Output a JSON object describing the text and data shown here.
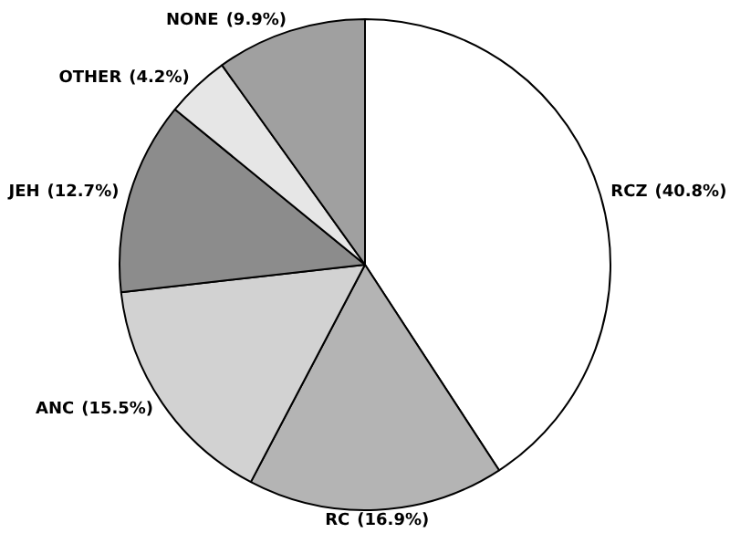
{
  "chart_data": {
    "type": "pie",
    "categories": [
      "RCZ",
      "RC",
      "ANC",
      "JEH",
      "OTHER",
      "NONE"
    ],
    "values": [
      40.8,
      16.9,
      15.5,
      12.7,
      4.2,
      9.9
    ],
    "colors": [
      "#ffffff",
      "#b4b4b4",
      "#d2d2d2",
      "#8c8c8c",
      "#e6e6e6",
      "#a0a0a0"
    ],
    "value_labels": [
      "(40.8%)",
      "(16.9%)",
      "(15.5%)",
      "(12.7%)",
      "(4.2%)",
      "(9.9%)"
    ],
    "legend": false
  }
}
